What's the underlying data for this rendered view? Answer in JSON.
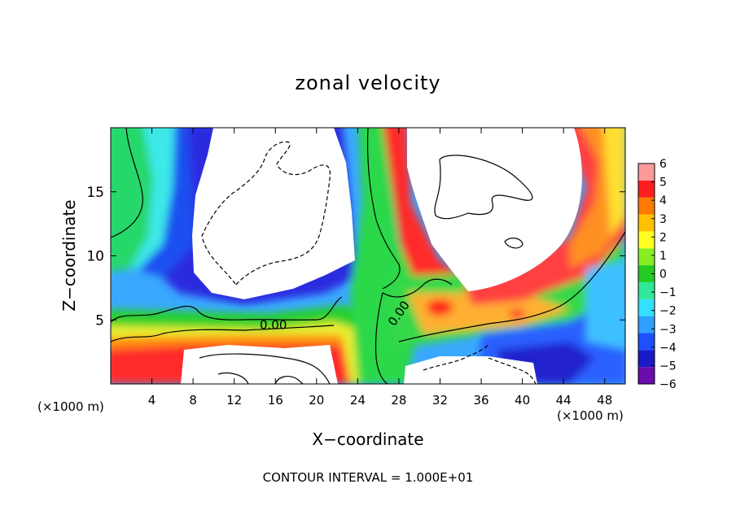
{
  "chart_data": {
    "type": "heatmap",
    "title": "zonal velocity",
    "xlabel": "X−coordinate",
    "ylabel": "Z−coordinate",
    "x_unit": "(×1000 m)",
    "y_unit": "(×1000 m)",
    "xlim": [
      0,
      50
    ],
    "ylim": [
      0,
      20
    ],
    "x_ticks": [
      4,
      8,
      12,
      16,
      20,
      24,
      28,
      32,
      36,
      40,
      44,
      48
    ],
    "y_ticks": [
      5,
      10,
      15
    ],
    "colorbar": {
      "min": -6,
      "max": 6,
      "ticks": [
        6,
        5,
        4,
        3,
        2,
        1,
        0,
        -1,
        -2,
        -3,
        -4,
        -5,
        -6
      ],
      "tick_labels": [
        "6",
        "5",
        "4",
        "3",
        "2",
        "1",
        "0",
        "−1",
        "−2",
        "−3",
        "−4",
        "−5",
        "−6"
      ],
      "colors": [
        "#6a0dad",
        "#1a1ac8",
        "#1e50ff",
        "#2fa0ff",
        "#33e0ff",
        "#2fe89a",
        "#22cc22",
        "#88ee22",
        "#ffff22",
        "#ffc000",
        "#ff7a00",
        "#ff1e1e",
        "#ff9a9a"
      ]
    },
    "contour_labels": [
      {
        "text": "0.00",
        "x": 15.8,
        "z": 4.6
      },
      {
        "text": "0.00",
        "x": 28.0,
        "z": 5.5
      }
    ],
    "annotation": "CONTOUR INTERVAL = 1.000E+01",
    "grid": false
  }
}
